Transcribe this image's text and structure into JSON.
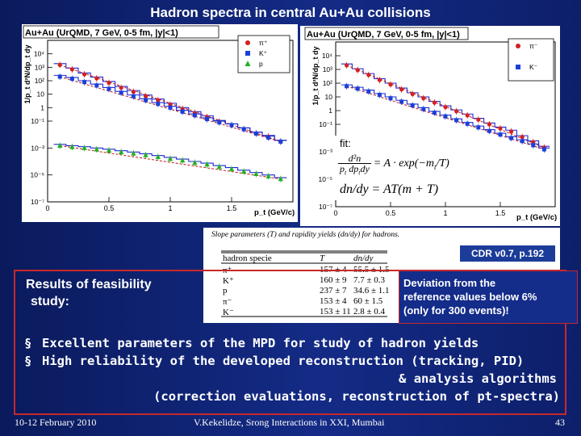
{
  "slide_title": "Hadron spectra in central Au+Au collisions",
  "cdr_label": "CDR v0.7, p.192",
  "fit_label": "fit:",
  "fit_eq1_a": "d²n",
  "fit_eq1_b": "p",
  "fit_eq1_c": "t",
  "fit_eq1_d": "dp",
  "fit_eq1_e": "t",
  "fit_eq1_f": "dy",
  "fit_eq1_rhs": "= A · exp(−m",
  "fit_eq1_rhs_sub": "t",
  "fit_eq1_rhs_end": "/T)",
  "fit_eq2": "dn/dy = AT(m + T)",
  "table_caption": "Slope parameters (T) and rapidity yields (dn/dy) for hadrons.",
  "table_headers": [
    "hadron specie",
    "T",
    "dn/dy"
  ],
  "table_rows": [
    [
      "π⁺",
      "157 ± 4",
      "55.5 ± 1.5"
    ],
    [
      "K⁺",
      "160 ± 9",
      "7.7 ± 0.3"
    ],
    [
      "p",
      "237 ± 7",
      "34.6 ± 1.1"
    ],
    [
      "π⁻",
      "153 ± 4",
      "60 ± 1.5"
    ],
    [
      "K⁻",
      "153 ± 11",
      "2.8 ± 0.4"
    ]
  ],
  "results_text": [
    "Results of feasibility",
    "study:"
  ],
  "deviation_text": [
    "Deviation from the",
    "reference values below 6%",
    "(only for 300 events)!"
  ],
  "bullets": [
    "Excellent parameters of the MPD for study of  hadron yields",
    "High reliability of the developed reconstruction (tracking, PID)"
  ],
  "bullet_continuation": [
    "& analysis algorithms",
    "(correction evaluations, reconstruction of pt-spectra)"
  ],
  "bullet_marker": "§",
  "footer": {
    "date": "10-12 February 2010",
    "author": "V.Kekelidze, Srong Interactions in XXI, Mumbai",
    "page": "43"
  },
  "colors": {
    "pos_pi": "#d42020",
    "kaon": "#1a3fd8",
    "proton": "#22b022",
    "hist": "#1c2ad0",
    "fit": "#c01818"
  },
  "chart_data": [
    {
      "type": "scatter",
      "title": "Au+Au (UrQMD, 7 GeV, 0-5 fm, |y|<1)",
      "xlabel": "p_t (GeV/c)",
      "ylabel": "1/p_t d²N/dp_t dy",
      "xlim": [
        0,
        2.0
      ],
      "ylim": [
        1e-07,
        100000.0
      ],
      "yscale": "log",
      "x_ticks": [
        "0",
        "0.5",
        "1",
        "1.5"
      ],
      "y_ticks": [
        "10⁴",
        "10³",
        "10²",
        "10",
        "1",
        "10⁻¹",
        "10⁻³",
        "10⁻⁵",
        "10⁻⁷"
      ],
      "legend": "top-right",
      "series": [
        {
          "name": "π⁺",
          "marker": "circle",
          "color": "#d42020",
          "x": [
            0.1,
            0.2,
            0.3,
            0.4,
            0.5,
            0.6,
            0.7,
            0.8,
            0.9,
            1.0,
            1.1,
            1.2,
            1.3,
            1.4,
            1.5,
            1.6,
            1.7,
            1.8,
            1.9
          ],
          "y": [
            1500,
            700,
            300,
            150,
            70,
            30,
            15,
            7,
            3.5,
            1.7,
            0.8,
            0.4,
            0.2,
            0.09,
            0.05,
            0.025,
            0.012,
            0.007,
            0.003
          ]
        },
        {
          "name": "K⁺",
          "marker": "square",
          "color": "#1a3fd8",
          "x": [
            0.1,
            0.2,
            0.3,
            0.4,
            0.5,
            0.6,
            0.7,
            0.8,
            0.9,
            1.0,
            1.1,
            1.2,
            1.3,
            1.4,
            1.5,
            1.6,
            1.7,
            1.8,
            1.9
          ],
          "y": [
            200,
            140,
            80,
            45,
            25,
            13,
            7,
            3.6,
            1.9,
            1.0,
            0.5,
            0.27,
            0.14,
            0.08,
            0.05,
            0.025,
            0.012,
            0.006,
            0.003
          ]
        },
        {
          "name": "p",
          "marker": "triangle",
          "color": "#22b022",
          "x": [
            0.1,
            0.2,
            0.3,
            0.4,
            0.5,
            0.6,
            0.7,
            0.8,
            0.9,
            1.0,
            1.1,
            1.2,
            1.3,
            1.4,
            1.5,
            1.6,
            1.7,
            1.8,
            1.9
          ],
          "y": [
            0.0015,
            0.0012,
            0.001,
            0.0008,
            0.00065,
            0.0005,
            0.0004,
            0.0003,
            0.00022,
            0.00016,
            0.00012,
            8e-05,
            6e-05,
            4e-05,
            2.8e-05,
            1.8e-05,
            1.2e-05,
            8e-06,
            5e-06
          ]
        }
      ]
    },
    {
      "type": "scatter",
      "title": "Au+Au (UrQMD, 7 GeV, 0-5 fm, |y|<1)",
      "xlabel": "p_t (GeV/c)",
      "ylabel": "1/p_t d²N/dp_t dy",
      "xlim": [
        0,
        2.0
      ],
      "ylim": [
        1e-07,
        100000.0
      ],
      "yscale": "log",
      "x_ticks": [
        "0",
        "0.5",
        "1",
        "1.5"
      ],
      "y_ticks": [
        "10⁴",
        "10³",
        "10²",
        "10",
        "1",
        "10⁻¹",
        "10⁻³",
        "10⁻⁵",
        "10⁻⁷"
      ],
      "legend": "top-right",
      "series": [
        {
          "name": "π⁻",
          "marker": "circle",
          "color": "#d42020",
          "x": [
            0.1,
            0.2,
            0.3,
            0.4,
            0.5,
            0.6,
            0.7,
            0.8,
            0.9,
            1.0,
            1.1,
            1.2,
            1.3,
            1.4,
            1.5,
            1.6,
            1.7,
            1.8,
            1.9
          ],
          "y": [
            2000,
            900,
            400,
            170,
            80,
            35,
            16,
            8,
            3.8,
            1.8,
            0.9,
            0.45,
            0.22,
            0.1,
            0.05,
            0.03,
            0.012,
            0.005,
            0.002
          ]
        },
        {
          "name": "K⁻",
          "marker": "square",
          "color": "#1a3fd8",
          "x": [
            0.1,
            0.2,
            0.3,
            0.4,
            0.5,
            0.6,
            0.7,
            0.8,
            0.9,
            1.0,
            1.1,
            1.2,
            1.3,
            1.4,
            1.5,
            1.6,
            1.7,
            1.8,
            1.9
          ],
          "y": [
            60,
            40,
            25,
            14,
            8,
            4.5,
            2.4,
            1.3,
            0.7,
            0.38,
            0.2,
            0.11,
            0.06,
            0.033,
            0.018,
            0.01,
            0.006,
            0.003,
            0.0015
          ]
        }
      ]
    }
  ]
}
